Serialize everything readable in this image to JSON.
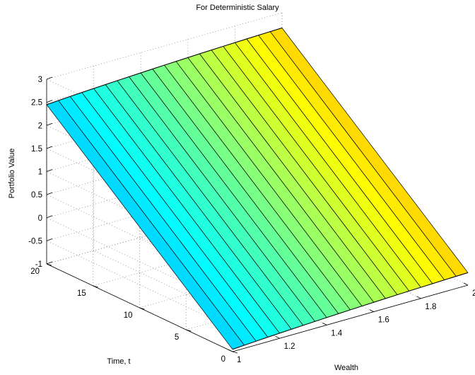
{
  "chart_data": {
    "type": "surface",
    "title": "For Deterministic Salary",
    "xlabel": "Wealth",
    "ylabel": "Time, t",
    "zlabel": "Portfolio Value",
    "xlim": [
      1,
      2
    ],
    "ylim": [
      0,
      20
    ],
    "zlim": [
      -1,
      3
    ],
    "x_ticks": [
      "1",
      "1.2",
      "1.4",
      "1.6",
      "1.8",
      "2"
    ],
    "y_ticks": [
      "0",
      "5",
      "10",
      "15",
      "20"
    ],
    "z_ticks": [
      "-1",
      "-0.5",
      "0",
      "0.5",
      "1",
      "1.5",
      "2",
      "2.5",
      "3"
    ],
    "grid": true,
    "colormap": "jet",
    "colormap_stops": [
      "#00008f",
      "#0000ff",
      "#00ffff",
      "#ffff00",
      "#ff0000",
      "#800000"
    ],
    "surface": {
      "wealth": [
        1.0,
        1.05,
        1.1,
        1.15,
        1.2,
        1.25,
        1.3,
        1.35,
        1.4,
        1.45,
        1.5,
        1.55,
        1.6,
        1.65,
        1.7,
        1.75,
        1.8,
        1.85,
        1.9,
        1.95,
        2.0
      ],
      "time_range": [
        0,
        20
      ],
      "value_at_t0": [
        -0.95,
        -0.933,
        -0.917,
        -0.902,
        -0.888,
        -0.875,
        -0.862,
        -0.85,
        -0.838,
        -0.826,
        -0.815,
        -0.805,
        -0.795,
        -0.785,
        -0.776,
        -0.767,
        -0.759,
        -0.751,
        -0.743,
        -0.736,
        -0.73
      ],
      "value_at_t20": [
        2.45,
        2.467,
        2.483,
        2.498,
        2.512,
        2.525,
        2.538,
        2.55,
        2.562,
        2.574,
        2.585,
        2.595,
        2.605,
        2.615,
        2.624,
        2.633,
        2.641,
        2.649,
        2.657,
        2.664,
        2.67
      ]
    }
  }
}
